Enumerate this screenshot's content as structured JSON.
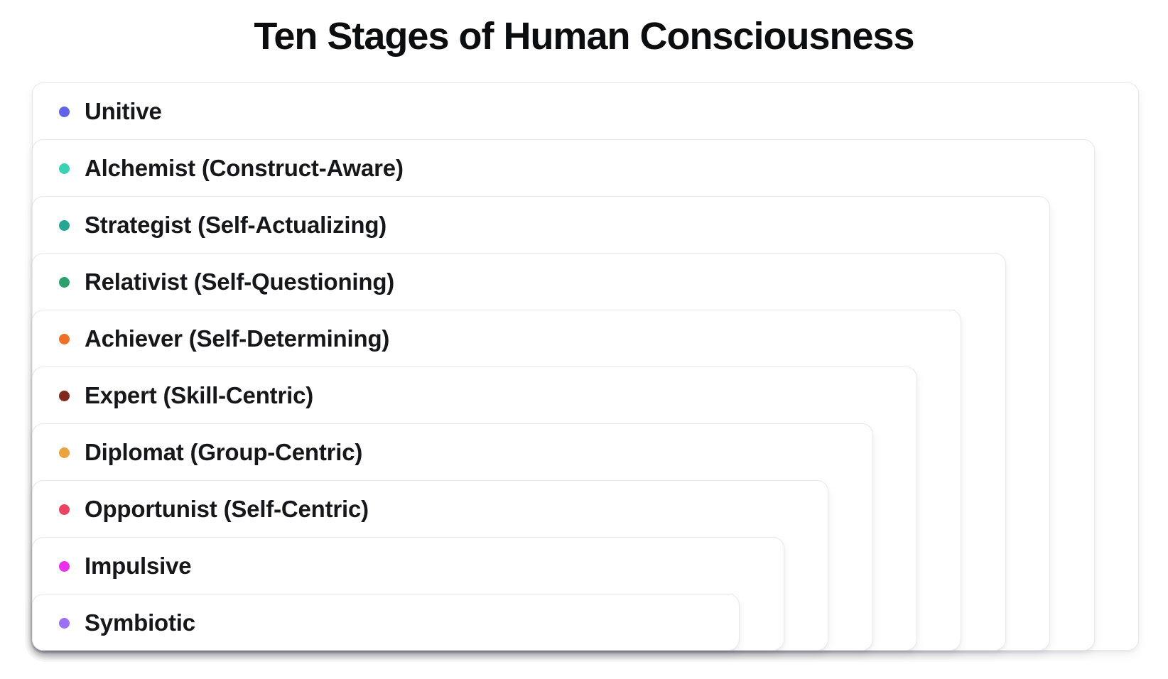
{
  "title": "Ten Stages of Human Consciousness",
  "diagram": {
    "type": "nested-stages",
    "stages": [
      {
        "label": "Unitive",
        "dot_color": "#6164e8"
      },
      {
        "label": "Alchemist (Construct-Aware)",
        "dot_color": "#36d4b5"
      },
      {
        "label": "Strategist (Self-Actualizing)",
        "dot_color": "#23a893"
      },
      {
        "label": "Relativist (Self-Questioning)",
        "dot_color": "#2ba16b"
      },
      {
        "label": "Achiever (Self-Determining)",
        "dot_color": "#ee7125"
      },
      {
        "label": "Expert (Skill-Centric)",
        "dot_color": "#802a1e"
      },
      {
        "label": "Diplomat (Group-Centric)",
        "dot_color": "#eda33c"
      },
      {
        "label": "Opportunist (Self-Centric)",
        "dot_color": "#ee4263"
      },
      {
        "label": "Impulsive",
        "dot_color": "#ee2eef"
      },
      {
        "label": "Symbiotic",
        "dot_color": "#9c6ff6"
      }
    ]
  }
}
